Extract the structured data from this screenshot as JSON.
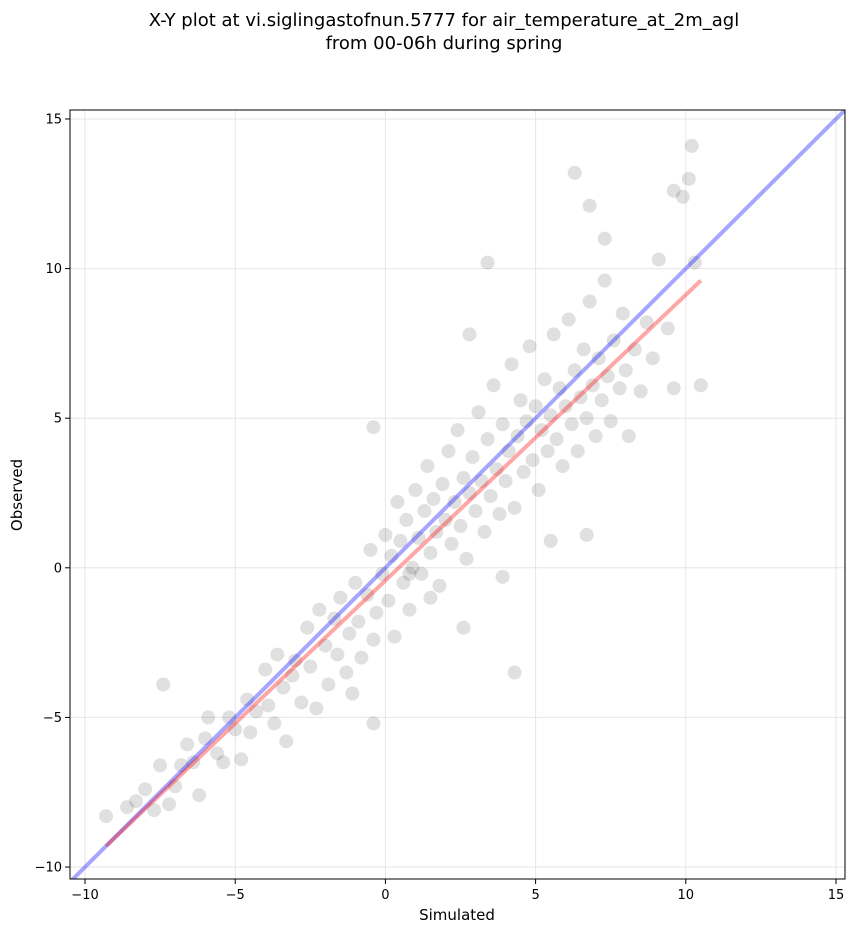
{
  "chart_data": {
    "type": "scatter",
    "title_line1": "X-Y plot at vi.siglingastofnun.5777 for air_temperature_at_2m_agl",
    "title_line2": "from 00-06h during spring",
    "xlabel": "Simulated",
    "ylabel": "Observed",
    "xlim": [
      -10.5,
      15.3
    ],
    "ylim": [
      -10.4,
      15.3
    ],
    "xticks": [
      -10,
      -5,
      0,
      5,
      10,
      15
    ],
    "yticks": [
      -10,
      -5,
      0,
      5,
      10,
      15
    ],
    "xtick_labels": [
      "−10",
      "−5",
      "0",
      "5",
      "10",
      "15"
    ],
    "ytick_labels": [
      "−10",
      "−5",
      "0",
      "5",
      "10",
      "15"
    ],
    "grid": true,
    "point_color": "#000000",
    "identity_line": {
      "color": "#0000ff",
      "x": [
        -10.5,
        15.3
      ],
      "y": [
        -10.5,
        15.3
      ]
    },
    "fit_line": {
      "color": "#ff0000",
      "x": [
        -9.3,
        10.5
      ],
      "y": [
        -9.3,
        9.6
      ]
    },
    "points": [
      [
        -9.3,
        -8.3
      ],
      [
        -8.6,
        -8.0
      ],
      [
        -8.3,
        -7.8
      ],
      [
        -8.0,
        -7.4
      ],
      [
        -7.7,
        -8.1
      ],
      [
        -7.5,
        -6.6
      ],
      [
        -7.4,
        -3.9
      ],
      [
        -7.2,
        -7.9
      ],
      [
        -7.0,
        -7.3
      ],
      [
        -6.8,
        -6.6
      ],
      [
        -6.6,
        -5.9
      ],
      [
        -6.4,
        -6.5
      ],
      [
        -6.2,
        -7.6
      ],
      [
        -6.0,
        -5.7
      ],
      [
        -5.9,
        -5.0
      ],
      [
        -5.6,
        -6.2
      ],
      [
        -5.4,
        -6.5
      ],
      [
        -5.2,
        -5.0
      ],
      [
        -5.0,
        -5.4
      ],
      [
        -4.8,
        -6.4
      ],
      [
        -4.6,
        -4.4
      ],
      [
        -4.5,
        -5.5
      ],
      [
        -4.3,
        -4.8
      ],
      [
        -4.0,
        -3.4
      ],
      [
        -3.9,
        -4.6
      ],
      [
        -3.7,
        -5.2
      ],
      [
        -3.6,
        -2.9
      ],
      [
        -3.4,
        -4.0
      ],
      [
        -3.3,
        -5.8
      ],
      [
        -3.1,
        -3.6
      ],
      [
        -3.0,
        -3.1
      ],
      [
        -2.8,
        -4.5
      ],
      [
        -2.6,
        -2.0
      ],
      [
        -2.5,
        -3.3
      ],
      [
        -2.3,
        -4.7
      ],
      [
        -2.2,
        -1.4
      ],
      [
        -2.0,
        -2.6
      ],
      [
        -1.9,
        -3.9
      ],
      [
        -1.7,
        -1.7
      ],
      [
        -1.6,
        -2.9
      ],
      [
        -1.5,
        -1.0
      ],
      [
        -1.3,
        -3.5
      ],
      [
        -1.2,
        -2.2
      ],
      [
        -1.0,
        -0.5
      ],
      [
        -0.9,
        -1.8
      ],
      [
        -0.8,
        -3.0
      ],
      [
        -0.6,
        -0.9
      ],
      [
        -0.5,
        0.6
      ],
      [
        -0.4,
        -2.4
      ],
      [
        -0.3,
        -1.5
      ],
      [
        -0.1,
        -0.2
      ],
      [
        0.0,
        1.1
      ],
      [
        0.1,
        -1.1
      ],
      [
        0.2,
        0.4
      ],
      [
        0.3,
        -2.3
      ],
      [
        0.4,
        2.2
      ],
      [
        0.5,
        0.9
      ],
      [
        0.6,
        -0.5
      ],
      [
        0.7,
        1.6
      ],
      [
        0.8,
        -1.4
      ],
      [
        0.9,
        0.0
      ],
      [
        1.0,
        2.6
      ],
      [
        1.1,
        1.0
      ],
      [
        1.2,
        -0.2
      ],
      [
        1.3,
        1.9
      ],
      [
        1.4,
        3.4
      ],
      [
        1.5,
        0.5
      ],
      [
        1.6,
        2.3
      ],
      [
        1.7,
        1.2
      ],
      [
        1.8,
        -0.6
      ],
      [
        1.9,
        2.8
      ],
      [
        2.0,
        1.6
      ],
      [
        2.1,
        3.9
      ],
      [
        2.2,
        0.8
      ],
      [
        2.3,
        2.2
      ],
      [
        2.4,
        4.6
      ],
      [
        2.5,
        1.4
      ],
      [
        2.6,
        3.0
      ],
      [
        2.7,
        0.3
      ],
      [
        2.8,
        2.5
      ],
      [
        2.9,
        3.7
      ],
      [
        3.0,
        1.9
      ],
      [
        3.1,
        5.2
      ],
      [
        3.2,
        2.9
      ],
      [
        3.3,
        1.2
      ],
      [
        3.4,
        4.3
      ],
      [
        3.5,
        2.4
      ],
      [
        3.6,
        6.1
      ],
      [
        3.7,
        3.3
      ],
      [
        3.8,
        1.8
      ],
      [
        3.9,
        4.8
      ],
      [
        4.0,
        2.9
      ],
      [
        4.1,
        3.9
      ],
      [
        4.2,
        6.8
      ],
      [
        4.3,
        2.0
      ],
      [
        4.4,
        4.4
      ],
      [
        4.5,
        5.6
      ],
      [
        4.6,
        3.2
      ],
      [
        4.7,
        4.9
      ],
      [
        4.8,
        7.4
      ],
      [
        4.9,
        3.6
      ],
      [
        5.0,
        5.4
      ],
      [
        5.1,
        2.6
      ],
      [
        5.2,
        4.6
      ],
      [
        5.3,
        6.3
      ],
      [
        5.4,
        3.9
      ],
      [
        5.5,
        5.1
      ],
      [
        5.6,
        7.8
      ],
      [
        5.7,
        4.3
      ],
      [
        5.8,
        6.0
      ],
      [
        5.9,
        3.4
      ],
      [
        6.0,
        5.4
      ],
      [
        6.1,
        8.3
      ],
      [
        6.2,
        4.8
      ],
      [
        6.3,
        6.6
      ],
      [
        6.4,
        3.9
      ],
      [
        6.5,
        5.7
      ],
      [
        6.6,
        7.3
      ],
      [
        6.7,
        5.0
      ],
      [
        6.8,
        8.9
      ],
      [
        6.9,
        6.1
      ],
      [
        7.0,
        4.4
      ],
      [
        7.1,
        7.0
      ],
      [
        7.2,
        5.6
      ],
      [
        7.3,
        9.6
      ],
      [
        7.4,
        6.4
      ],
      [
        7.5,
        4.9
      ],
      [
        7.6,
        7.6
      ],
      [
        7.8,
        6.0
      ],
      [
        7.9,
        8.5
      ],
      [
        8.0,
        6.6
      ],
      [
        8.1,
        4.4
      ],
      [
        8.3,
        7.3
      ],
      [
        8.5,
        5.9
      ],
      [
        8.7,
        8.2
      ],
      [
        8.9,
        7.0
      ],
      [
        9.1,
        10.3
      ],
      [
        9.4,
        8.0
      ],
      [
        9.6,
        6.0
      ],
      [
        9.9,
        12.4
      ],
      [
        10.1,
        13.0
      ],
      [
        10.3,
        10.2
      ],
      [
        10.5,
        6.1
      ],
      [
        10.2,
        14.1
      ],
      [
        9.6,
        12.6
      ],
      [
        6.3,
        13.2
      ],
      [
        6.8,
        12.1
      ],
      [
        7.3,
        11.0
      ],
      [
        3.4,
        10.2
      ],
      [
        2.8,
        7.8
      ],
      [
        4.3,
        -3.5
      ],
      [
        -0.4,
        4.7
      ],
      [
        2.6,
        -2.0
      ],
      [
        -0.4,
        -5.2
      ],
      [
        -1.1,
        -4.2
      ],
      [
        0.8,
        -0.2
      ],
      [
        5.5,
        0.9
      ],
      [
        6.7,
        1.1
      ],
      [
        1.5,
        -1.0
      ],
      [
        3.9,
        -0.3
      ]
    ]
  }
}
